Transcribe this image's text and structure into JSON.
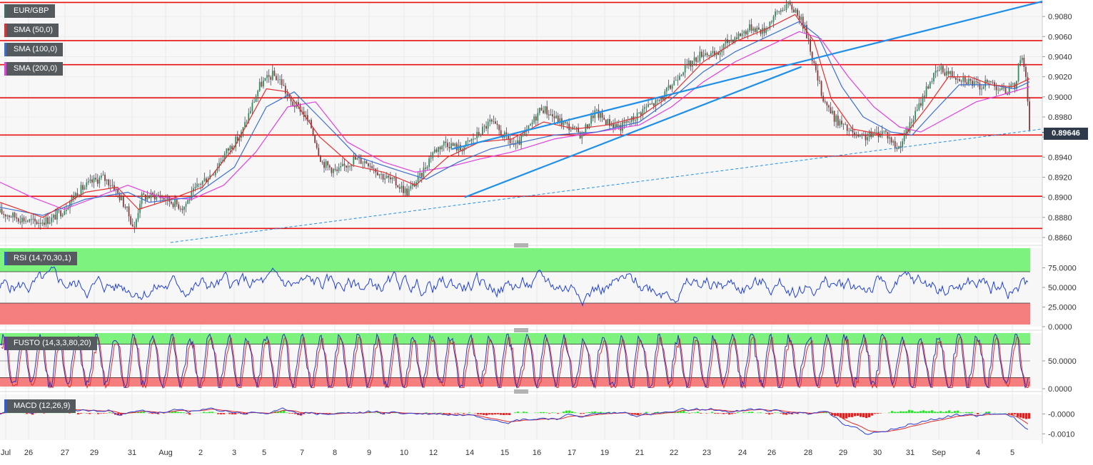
{
  "chart_data": {
    "type": "line",
    "symbol": "EUR/GBP",
    "x_tick_labels": [
      "Jul",
      "26",
      "27",
      "29",
      "31",
      "Aug",
      "2",
      "3",
      "5",
      "7",
      "8",
      "9",
      "10",
      "12",
      "14",
      "15",
      "16",
      "17",
      "19",
      "21",
      "22",
      "23",
      "24",
      "26",
      "28",
      "29",
      "30",
      "31",
      "Sep",
      "4",
      "5"
    ],
    "price_panel": {
      "legend": [
        "EUR/GBP",
        "SMA (50,0)",
        "SMA (100,0)",
        "SMA (200,0)"
      ],
      "series_colors": {
        "price": "#3f6f5f",
        "sma50": "#e03030",
        "sma100": "#3a6fd0",
        "sma200": "#e040e0"
      },
      "y_tick_labels": [
        "0.9080",
        "0.9060",
        "0.9040",
        "0.9020",
        "0.9000",
        "0.8980",
        "0.8960",
        "0.8940",
        "0.8920",
        "0.8900",
        "0.8880",
        "0.8860"
      ],
      "ylim": [
        0.8855,
        0.9095
      ],
      "last_price": "0.89646",
      "horizontal_levels": [
        0.9094,
        0.9056,
        0.9032,
        0.8999,
        0.8962,
        0.8941,
        0.8901,
        0.8869
      ],
      "price_path": [
        {
          "d": 0.0,
          "v": 0.8885
        },
        {
          "d": 0.8,
          "v": 0.888
        },
        {
          "d": 1.6,
          "v": 0.8875
        },
        {
          "d": 2.4,
          "v": 0.8878
        },
        {
          "d": 3.0,
          "v": 0.8888
        },
        {
          "d": 3.6,
          "v": 0.8905
        },
        {
          "d": 4.3,
          "v": 0.8915
        },
        {
          "d": 4.8,
          "v": 0.892
        },
        {
          "d": 5.3,
          "v": 0.8912
        },
        {
          "d": 5.9,
          "v": 0.889
        },
        {
          "d": 6.3,
          "v": 0.8868
        },
        {
          "d": 6.6,
          "v": 0.89
        },
        {
          "d": 7.4,
          "v": 0.8902
        },
        {
          "d": 8.0,
          "v": 0.8896
        },
        {
          "d": 8.6,
          "v": 0.889
        },
        {
          "d": 9.3,
          "v": 0.8912
        },
        {
          "d": 10.0,
          "v": 0.8925
        },
        {
          "d": 10.6,
          "v": 0.8945
        },
        {
          "d": 11.3,
          "v": 0.8962
        },
        {
          "d": 11.8,
          "v": 0.899
        },
        {
          "d": 12.2,
          "v": 0.9012
        },
        {
          "d": 12.8,
          "v": 0.9022
        },
        {
          "d": 13.2,
          "v": 0.9015
        },
        {
          "d": 13.6,
          "v": 0.8995
        },
        {
          "d": 14.1,
          "v": 0.8988
        },
        {
          "d": 14.6,
          "v": 0.897
        },
        {
          "d": 15.1,
          "v": 0.8935
        },
        {
          "d": 15.8,
          "v": 0.8925
        },
        {
          "d": 16.6,
          "v": 0.8938
        },
        {
          "d": 17.3,
          "v": 0.8935
        },
        {
          "d": 17.9,
          "v": 0.8922
        },
        {
          "d": 18.5,
          "v": 0.8915
        },
        {
          "d": 19.1,
          "v": 0.8905
        },
        {
          "d": 19.7,
          "v": 0.892
        },
        {
          "d": 20.3,
          "v": 0.8945
        },
        {
          "d": 20.9,
          "v": 0.8955
        },
        {
          "d": 21.6,
          "v": 0.8948
        },
        {
          "d": 22.3,
          "v": 0.896
        },
        {
          "d": 23.0,
          "v": 0.8975
        },
        {
          "d": 23.6,
          "v": 0.8962
        },
        {
          "d": 24.2,
          "v": 0.895
        },
        {
          "d": 24.8,
          "v": 0.8968
        },
        {
          "d": 25.4,
          "v": 0.899
        },
        {
          "d": 26.1,
          "v": 0.8978
        },
        {
          "d": 26.7,
          "v": 0.897
        },
        {
          "d": 27.3,
          "v": 0.8962
        },
        {
          "d": 27.9,
          "v": 0.8985
        },
        {
          "d": 28.5,
          "v": 0.8975
        },
        {
          "d": 29.1,
          "v": 0.897
        },
        {
          "d": 29.7,
          "v": 0.8978
        },
        {
          "d": 30.3,
          "v": 0.899
        },
        {
          "d": 30.9,
          "v": 0.8995
        },
        {
          "d": 31.4,
          "v": 0.9008
        },
        {
          "d": 31.9,
          "v": 0.9025
        },
        {
          "d": 32.5,
          "v": 0.9035
        },
        {
          "d": 33.0,
          "v": 0.9045
        },
        {
          "d": 33.6,
          "v": 0.904
        },
        {
          "d": 34.1,
          "v": 0.9055
        },
        {
          "d": 34.7,
          "v": 0.9062
        },
        {
          "d": 35.3,
          "v": 0.907
        },
        {
          "d": 35.8,
          "v": 0.9065
        },
        {
          "d": 36.3,
          "v": 0.908
        },
        {
          "d": 36.9,
          "v": 0.9092
        },
        {
          "d": 37.4,
          "v": 0.9085
        },
        {
          "d": 37.9,
          "v": 0.906
        },
        {
          "d": 38.2,
          "v": 0.903
        },
        {
          "d": 38.6,
          "v": 0.9
        },
        {
          "d": 39.1,
          "v": 0.898
        },
        {
          "d": 39.7,
          "v": 0.8968
        },
        {
          "d": 40.3,
          "v": 0.8958
        },
        {
          "d": 40.9,
          "v": 0.8962
        },
        {
          "d": 41.5,
          "v": 0.8966
        },
        {
          "d": 42.1,
          "v": 0.8948
        },
        {
          "d": 42.6,
          "v": 0.8968
        },
        {
          "d": 43.1,
          "v": 0.899
        },
        {
          "d": 43.6,
          "v": 0.9015
        },
        {
          "d": 44.1,
          "v": 0.9028
        },
        {
          "d": 44.7,
          "v": 0.9022
        },
        {
          "d": 45.3,
          "v": 0.9018
        },
        {
          "d": 45.9,
          "v": 0.901
        },
        {
          "d": 46.5,
          "v": 0.9015
        },
        {
          "d": 47.1,
          "v": 0.9005
        },
        {
          "d": 47.6,
          "v": 0.901
        },
        {
          "d": 47.9,
          "v": 0.9042
        },
        {
          "d": 48.1,
          "v": 0.903
        },
        {
          "d": 48.3,
          "v": 0.8965
        }
      ],
      "sma50_path": [
        {
          "d": 0.0,
          "v": 0.8895
        },
        {
          "d": 2.0,
          "v": 0.888
        },
        {
          "d": 4.0,
          "v": 0.8905
        },
        {
          "d": 5.5,
          "v": 0.891
        },
        {
          "d": 6.5,
          "v": 0.8888
        },
        {
          "d": 8.0,
          "v": 0.8898
        },
        {
          "d": 9.5,
          "v": 0.891
        },
        {
          "d": 11.0,
          "v": 0.895
        },
        {
          "d": 12.5,
          "v": 0.9008
        },
        {
          "d": 13.5,
          "v": 0.9005
        },
        {
          "d": 15.0,
          "v": 0.896
        },
        {
          "d": 16.5,
          "v": 0.8932
        },
        {
          "d": 18.0,
          "v": 0.8925
        },
        {
          "d": 19.5,
          "v": 0.8912
        },
        {
          "d": 21.0,
          "v": 0.894
        },
        {
          "d": 22.5,
          "v": 0.8955
        },
        {
          "d": 24.0,
          "v": 0.8958
        },
        {
          "d": 25.5,
          "v": 0.8975
        },
        {
          "d": 27.0,
          "v": 0.8968
        },
        {
          "d": 28.5,
          "v": 0.8972
        },
        {
          "d": 30.0,
          "v": 0.898
        },
        {
          "d": 31.5,
          "v": 0.9002
        },
        {
          "d": 33.0,
          "v": 0.9035
        },
        {
          "d": 34.5,
          "v": 0.9055
        },
        {
          "d": 36.0,
          "v": 0.9068
        },
        {
          "d": 37.3,
          "v": 0.9082
        },
        {
          "d": 38.2,
          "v": 0.9055
        },
        {
          "d": 39.0,
          "v": 0.8998
        },
        {
          "d": 40.0,
          "v": 0.8968
        },
        {
          "d": 41.5,
          "v": 0.8962
        },
        {
          "d": 42.5,
          "v": 0.8963
        },
        {
          "d": 43.5,
          "v": 0.899
        },
        {
          "d": 44.5,
          "v": 0.902
        },
        {
          "d": 45.5,
          "v": 0.902
        },
        {
          "d": 46.5,
          "v": 0.9012
        },
        {
          "d": 47.5,
          "v": 0.901
        },
        {
          "d": 48.3,
          "v": 0.9018
        }
      ],
      "sma100_path": [
        {
          "d": 0.0,
          "v": 0.889
        },
        {
          "d": 2.0,
          "v": 0.8882
        },
        {
          "d": 4.0,
          "v": 0.8898
        },
        {
          "d": 6.0,
          "v": 0.8905
        },
        {
          "d": 7.0,
          "v": 0.8895
        },
        {
          "d": 9.0,
          "v": 0.89
        },
        {
          "d": 11.0,
          "v": 0.893
        },
        {
          "d": 12.5,
          "v": 0.899
        },
        {
          "d": 13.8,
          "v": 0.9005
        },
        {
          "d": 15.2,
          "v": 0.8975
        },
        {
          "d": 16.8,
          "v": 0.894
        },
        {
          "d": 18.5,
          "v": 0.8928
        },
        {
          "d": 20.0,
          "v": 0.8918
        },
        {
          "d": 21.5,
          "v": 0.8935
        },
        {
          "d": 23.0,
          "v": 0.8948
        },
        {
          "d": 24.5,
          "v": 0.8955
        },
        {
          "d": 26.0,
          "v": 0.8962
        },
        {
          "d": 28.0,
          "v": 0.8965
        },
        {
          "d": 30.0,
          "v": 0.8975
        },
        {
          "d": 31.5,
          "v": 0.8998
        },
        {
          "d": 33.0,
          "v": 0.9025
        },
        {
          "d": 34.5,
          "v": 0.9045
        },
        {
          "d": 36.0,
          "v": 0.906
        },
        {
          "d": 37.5,
          "v": 0.9075
        },
        {
          "d": 38.4,
          "v": 0.906
        },
        {
          "d": 39.5,
          "v": 0.901
        },
        {
          "d": 40.5,
          "v": 0.898
        },
        {
          "d": 41.8,
          "v": 0.8965
        },
        {
          "d": 42.8,
          "v": 0.8962
        },
        {
          "d": 43.8,
          "v": 0.8985
        },
        {
          "d": 45.0,
          "v": 0.9012
        },
        {
          "d": 46.5,
          "v": 0.9012
        },
        {
          "d": 47.6,
          "v": 0.9008
        },
        {
          "d": 48.3,
          "v": 0.9015
        }
      ],
      "sma200_path": [
        {
          "d": 0.0,
          "v": 0.8915
        },
        {
          "d": 1.5,
          "v": 0.89
        },
        {
          "d": 3.0,
          "v": 0.8888
        },
        {
          "d": 4.5,
          "v": 0.89
        },
        {
          "d": 6.0,
          "v": 0.8912
        },
        {
          "d": 7.5,
          "v": 0.89
        },
        {
          "d": 9.0,
          "v": 0.8898
        },
        {
          "d": 10.5,
          "v": 0.8912
        },
        {
          "d": 12.0,
          "v": 0.8945
        },
        {
          "d": 13.5,
          "v": 0.899
        },
        {
          "d": 14.8,
          "v": 0.8995
        },
        {
          "d": 16.3,
          "v": 0.8955
        },
        {
          "d": 18.0,
          "v": 0.8935
        },
        {
          "d": 19.5,
          "v": 0.8925
        },
        {
          "d": 21.0,
          "v": 0.893
        },
        {
          "d": 22.5,
          "v": 0.8938
        },
        {
          "d": 24.0,
          "v": 0.8945
        },
        {
          "d": 26.0,
          "v": 0.8958
        },
        {
          "d": 28.0,
          "v": 0.8965
        },
        {
          "d": 30.0,
          "v": 0.8972
        },
        {
          "d": 31.5,
          "v": 0.899
        },
        {
          "d": 33.0,
          "v": 0.9015
        },
        {
          "d": 34.5,
          "v": 0.9035
        },
        {
          "d": 36.0,
          "v": 0.905
        },
        {
          "d": 37.5,
          "v": 0.9065
        },
        {
          "d": 38.5,
          "v": 0.9058
        },
        {
          "d": 39.8,
          "v": 0.902
        },
        {
          "d": 41.0,
          "v": 0.899
        },
        {
          "d": 42.2,
          "v": 0.897
        },
        {
          "d": 43.2,
          "v": 0.8965
        },
        {
          "d": 44.5,
          "v": 0.898
        },
        {
          "d": 45.8,
          "v": 0.8995
        },
        {
          "d": 47.0,
          "v": 0.9002
        },
        {
          "d": 48.3,
          "v": 0.901
        }
      ],
      "trend_lines": [
        {
          "from": {
            "d": 21.2,
            "v": 0.8948
          },
          "to": {
            "d": 48.9,
            "v": 0.9095
          },
          "style": "solid"
        },
        {
          "from": {
            "d": 21.8,
            "v": 0.89
          },
          "to": {
            "d": 37.6,
            "v": 0.903
          },
          "style": "solid"
        },
        {
          "from": {
            "d": 8.0,
            "v": 0.8855
          },
          "to": {
            "d": 48.9,
            "v": 0.8968
          },
          "style": "dashed"
        }
      ]
    },
    "rsi_panel": {
      "label": "RSI (14,70,30,1)",
      "y_tick_labels": [
        "75.0000",
        "50.0000",
        "25.0000",
        "0.0000"
      ],
      "ylim": [
        0,
        100
      ],
      "upper_band": 70,
      "lower_band": 30
    },
    "fusto_panel": {
      "label": "FUSTO (14,3,3,80,20)",
      "y_tick_labels": [
        "50.0000",
        "0.0000"
      ],
      "ylim": [
        0,
        100
      ],
      "upper_band": 80,
      "lower_band": 20
    },
    "macd_panel": {
      "label": "MACD (12,26,9)",
      "y_tick_labels": [
        "-0.0000",
        "-0.0010"
      ],
      "ylim": [
        -0.0013,
        0.0009
      ]
    }
  }
}
